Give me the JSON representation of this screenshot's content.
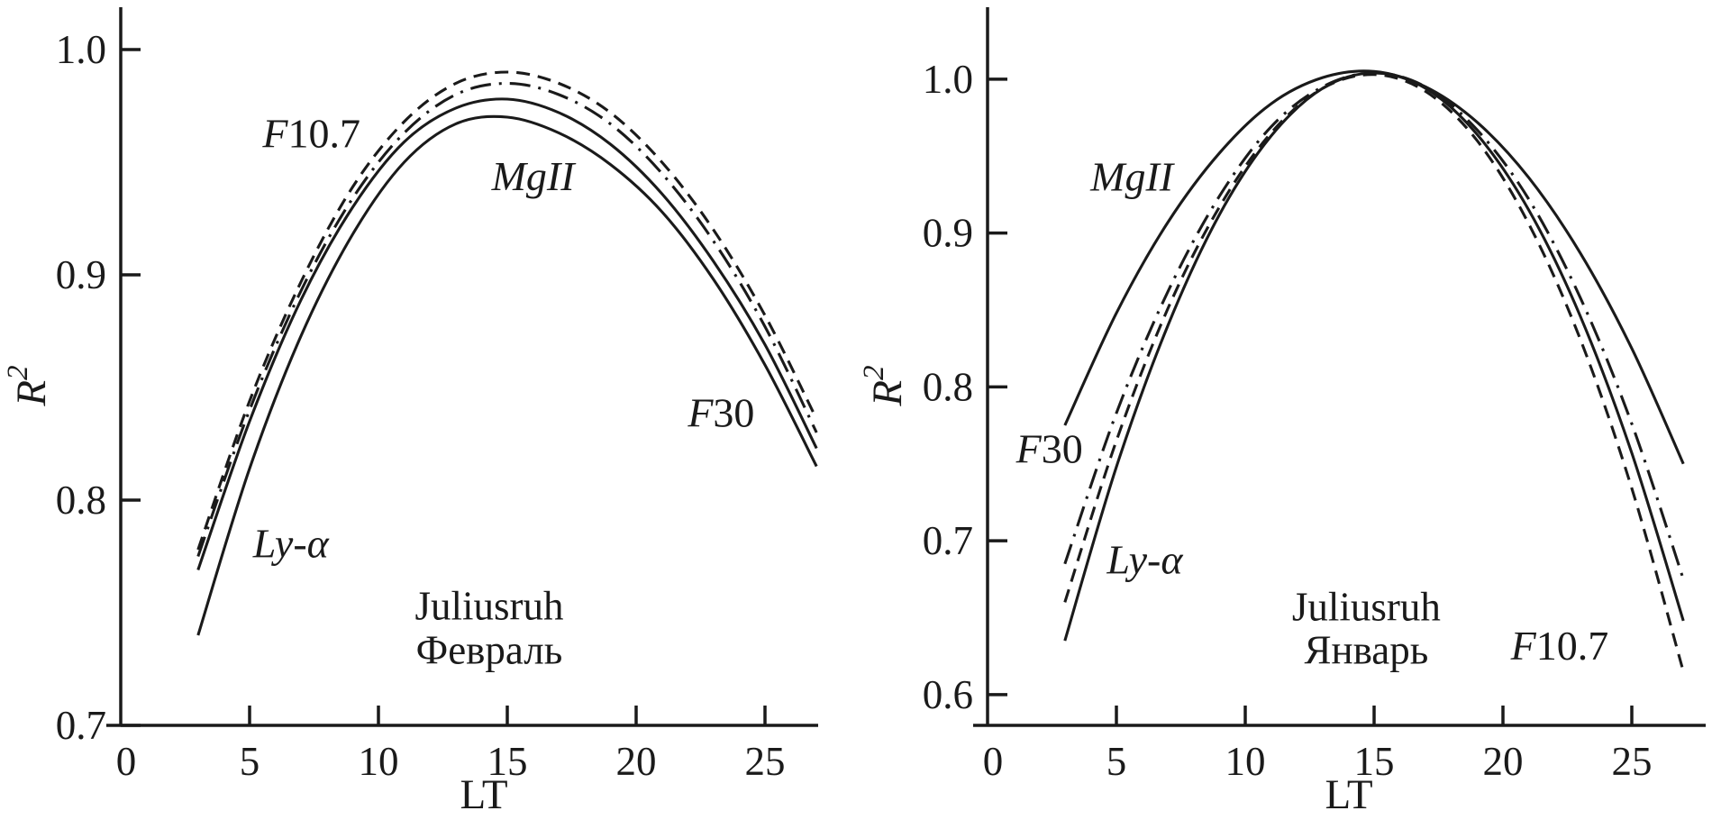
{
  "figure": {
    "background": "#ffffff",
    "ink": "#1a1a1a",
    "description": "Two-panel line chart of squared correlation R2 versus local time LT for Juliusruh"
  },
  "chart_data": [
    {
      "type": "line",
      "panel": "left",
      "station": "Juliusruh",
      "month": "Февраль",
      "xlabel": "LT",
      "ylabel": "R2",
      "ylabel_parts": {
        "base": "R",
        "sup": "2"
      },
      "xlim": [
        0,
        28
      ],
      "ylim": [
        0.7,
        1.02
      ],
      "xticks": [
        0,
        5,
        10,
        15,
        20,
        25
      ],
      "yticks": [
        1.0,
        0.9,
        0.8,
        0.7
      ],
      "grid": false,
      "legend_position": "inline-labels",
      "x": [
        3,
        5,
        7,
        9,
        11,
        13,
        15,
        17,
        19,
        21,
        23,
        25,
        27
      ],
      "series": [
        {
          "name": "F10.7",
          "line_style": "dashed",
          "values": [
            0.778,
            0.844,
            0.897,
            0.939,
            0.968,
            0.985,
            0.99,
            0.985,
            0.972,
            0.95,
            0.92,
            0.882,
            0.836
          ],
          "label": {
            "parts": [
              {
                "t": "F",
                "i": 1
              },
              {
                "t": "10.7",
                "i": 0
              }
            ],
            "x": 7.4,
            "y": 0.963
          }
        },
        {
          "name": "F30",
          "line_style": "dash-dot",
          "values": [
            0.775,
            0.84,
            0.893,
            0.934,
            0.963,
            0.98,
            0.985,
            0.98,
            0.967,
            0.945,
            0.915,
            0.877,
            0.83
          ],
          "label": {
            "parts": [
              {
                "t": "F",
                "i": 1
              },
              {
                "t": "30",
                "i": 0
              }
            ],
            "x": 23.3,
            "y": 0.839
          }
        },
        {
          "name": "MgII",
          "line_style": "solid",
          "values": [
            0.769,
            0.835,
            0.889,
            0.93,
            0.959,
            0.974,
            0.978,
            0.972,
            0.958,
            0.936,
            0.906,
            0.869,
            0.823
          ],
          "label": {
            "parts": [
              {
                "t": "MgII",
                "i": 1
              }
            ],
            "x": 16.0,
            "y": 0.944
          }
        },
        {
          "name": "Ly-α",
          "line_style": "solid",
          "values": [
            0.74,
            0.814,
            0.873,
            0.918,
            0.95,
            0.967,
            0.97,
            0.963,
            0.949,
            0.928,
            0.898,
            0.86,
            0.815
          ],
          "label": {
            "parts": [
              {
                "t": "Ly-α",
                "i": 1
              }
            ],
            "x": 6.6,
            "y": 0.781
          }
        }
      ],
      "title_annotation": {
        "lines": [
          "Juliusruh",
          "Февраль"
        ],
        "x": 14.3,
        "y": [
          0.753,
          0.7335
        ]
      }
    },
    {
      "type": "line",
      "panel": "right",
      "station": "Juliusruh",
      "month": "Январь",
      "xlabel": "LT",
      "ylabel": "R2",
      "ylabel_parts": {
        "base": "R",
        "sup": "2"
      },
      "xlim": [
        0,
        28
      ],
      "ylim": [
        0.58,
        1.047
      ],
      "xticks": [
        0,
        5,
        10,
        15,
        20,
        25
      ],
      "yticks": [
        1.0,
        0.9,
        0.8,
        0.7,
        0.6
      ],
      "grid": false,
      "legend_position": "inline-labels",
      "x": [
        3,
        5,
        7,
        9,
        11,
        13,
        15,
        17,
        19,
        21,
        23,
        25,
        27
      ],
      "series": [
        {
          "name": "F10.7",
          "line_style": "dashed",
          "values": [
            0.66,
            0.765,
            0.851,
            0.917,
            0.965,
            0.994,
            1.003,
            0.992,
            0.96,
            0.906,
            0.831,
            0.734,
            0.615
          ],
          "label": {
            "parts": [
              {
                "t": "F",
                "i": 1
              },
              {
                "t": "10.7",
                "i": 0
              }
            ],
            "x": 22.2,
            "y": 0.632
          }
        },
        {
          "name": "F30",
          "line_style": "dash-dot",
          "values": [
            0.685,
            0.783,
            0.862,
            0.924,
            0.969,
            0.995,
            1.004,
            0.995,
            0.967,
            0.922,
            0.858,
            0.776,
            0.675
          ],
          "label": {
            "parts": [
              {
                "t": "F",
                "i": 1
              },
              {
                "t": "30",
                "i": 0
              }
            ],
            "x": 2.4,
            "y": 0.76
          }
        },
        {
          "name": "MgII",
          "line_style": "solid",
          "values": [
            0.775,
            0.848,
            0.907,
            0.952,
            0.984,
            1.001,
            1.005,
            0.995,
            0.972,
            0.936,
            0.887,
            0.825,
            0.75
          ],
          "label": {
            "parts": [
              {
                "t": "MgII",
                "i": 1
              }
            ],
            "x": 5.6,
            "y": 0.937
          }
        },
        {
          "name": "Ly-α",
          "line_style": "solid",
          "values": [
            0.635,
            0.748,
            0.84,
            0.912,
            0.963,
            0.994,
            1.004,
            0.994,
            0.964,
            0.915,
            0.846,
            0.757,
            0.648
          ],
          "label": {
            "parts": [
              {
                "t": "Ly-α",
                "i": 1
              }
            ],
            "x": 6.1,
            "y": 0.688
          }
        }
      ],
      "title_annotation": {
        "lines": [
          "Juliusruh",
          "Январь"
        ],
        "x": 14.7,
        "y": [
          0.657,
          0.629
        ]
      }
    }
  ]
}
